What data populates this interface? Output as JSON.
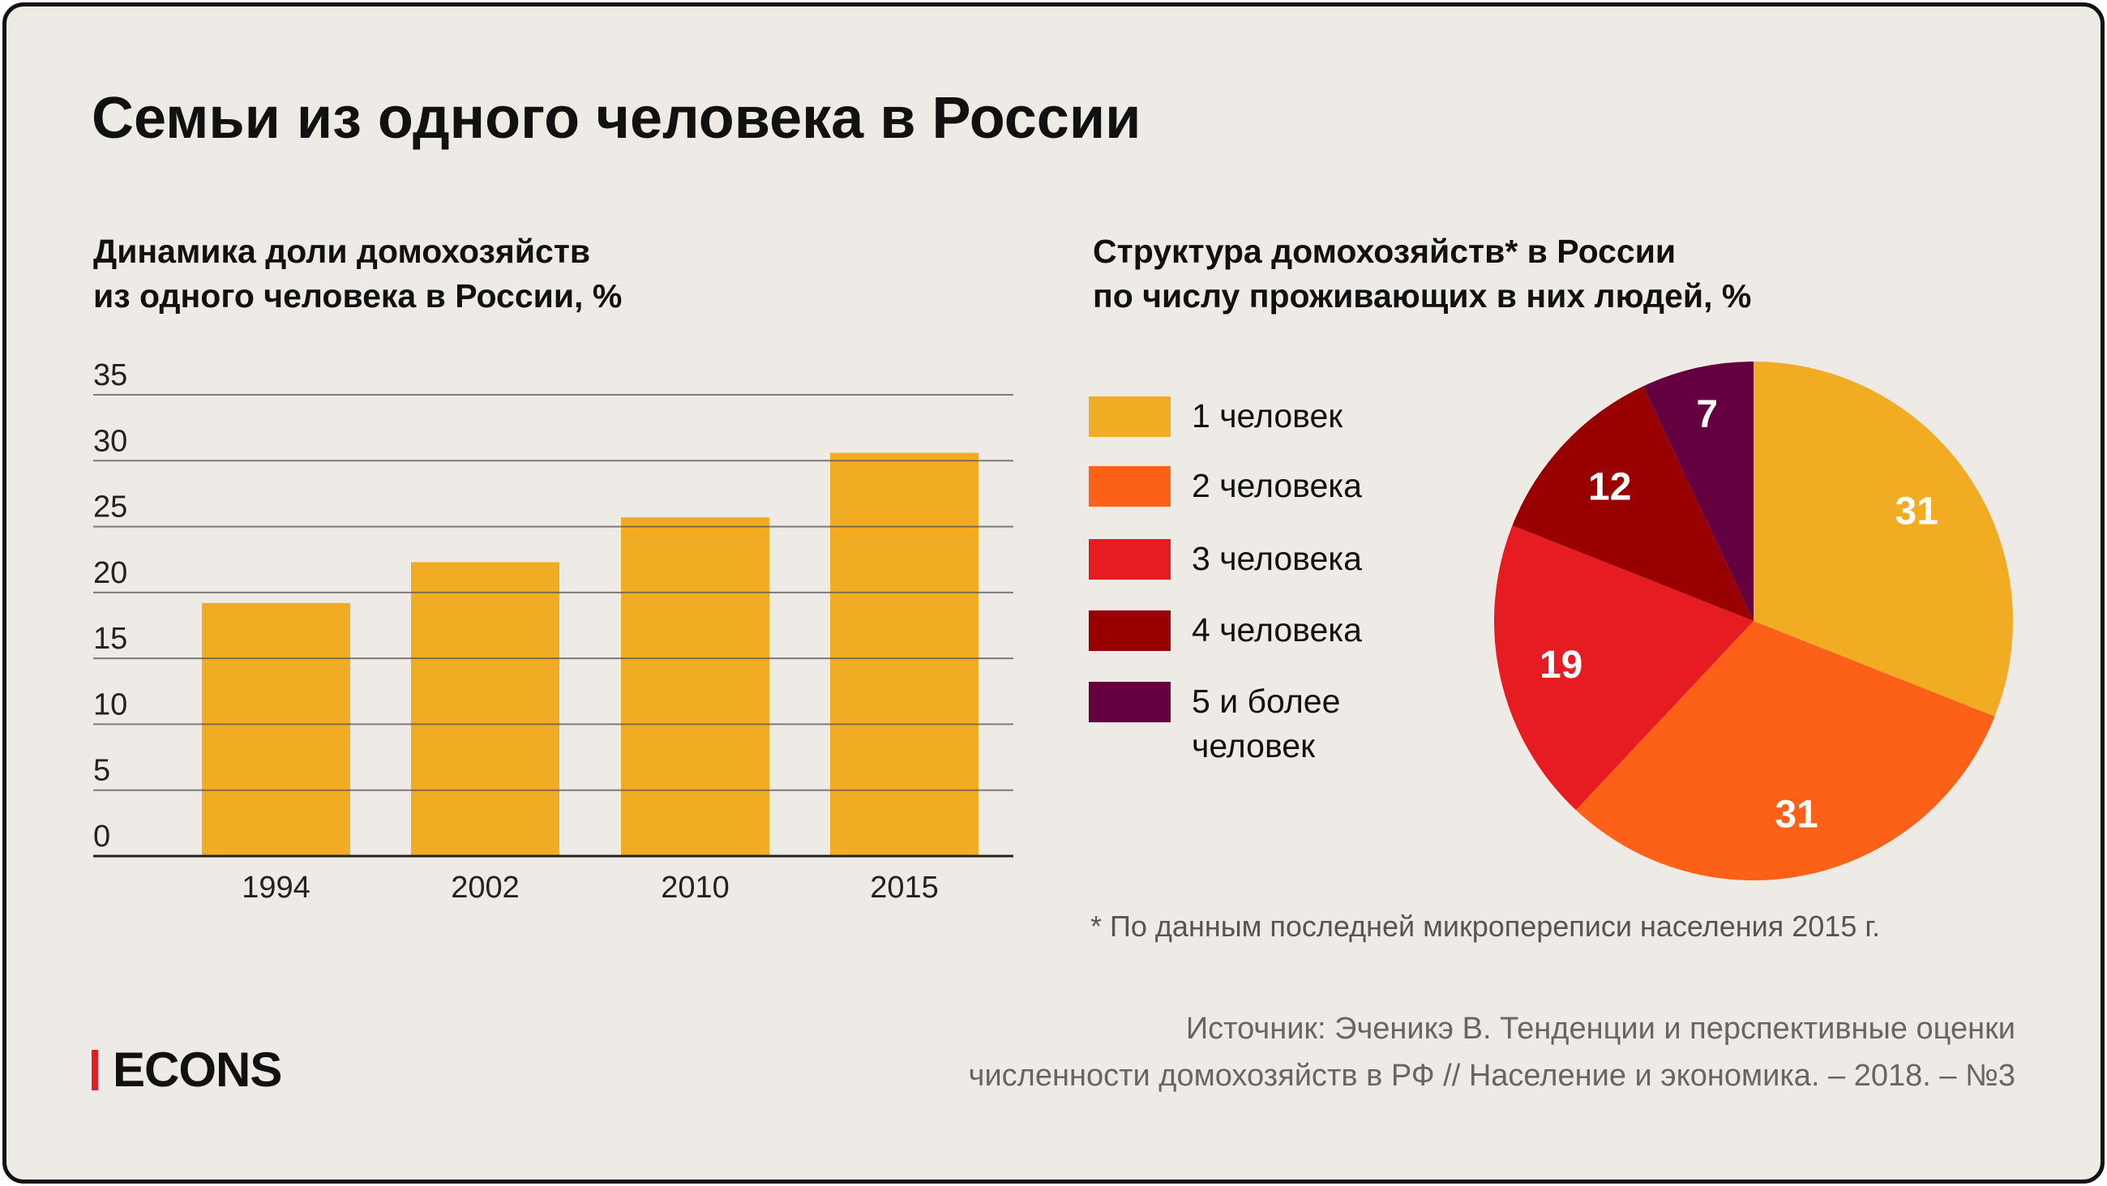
{
  "title": "Семьи из одного человека в России",
  "chart_data": [
    {
      "type": "bar",
      "title": "Динамика доли домохозяйств из одного человека в России, %",
      "title_lines": [
        "Динамика доли домохозяйств",
        "из одного человека в России, %"
      ],
      "categories": [
        "1994",
        "2002",
        "2010",
        "2015"
      ],
      "values": [
        19.2,
        22.3,
        25.7,
        30.6
      ],
      "ylim": [
        0,
        35
      ],
      "yticks": [
        "0",
        "5",
        "10",
        "15",
        "20",
        "25",
        "30",
        "35"
      ],
      "grid": true,
      "color": "#f2ac24"
    },
    {
      "type": "pie",
      "title": "Структура домохозяйств* в России по числу проживающих в них людей, %",
      "title_lines": [
        "Структура домохозяйств* в России",
        "по числу проживающих в них людей, %"
      ],
      "legend_position": "left",
      "slices": [
        {
          "label": "1 человек",
          "value": 31,
          "color": "#f2ac24"
        },
        {
          "label": "2 человека",
          "value": 31,
          "color": "#fd6118"
        },
        {
          "label": "3 человека",
          "value": 19,
          "color": "#e71c23"
        },
        {
          "label": "4 человека",
          "value": 12,
          "color": "#990000"
        },
        {
          "label": "5 и более человек",
          "value": 7,
          "color": "#650040"
        }
      ],
      "legend_lines": [
        [
          "1 человек"
        ],
        [
          "2 человека"
        ],
        [
          "3 человека"
        ],
        [
          "4 человека"
        ],
        [
          "5 и более",
          "человек"
        ]
      ]
    }
  ],
  "footnote": "* По данным последней микропереписи населения 2015 г.",
  "source": {
    "line1": "Источник: Эченикэ В. Тенденции и перспективные оценки",
    "line2": "численности домохозяйств в РФ // Население и экономика. – 2018. – №3"
  },
  "logo": {
    "text": "ECONS",
    "accent": "#e31e24"
  }
}
